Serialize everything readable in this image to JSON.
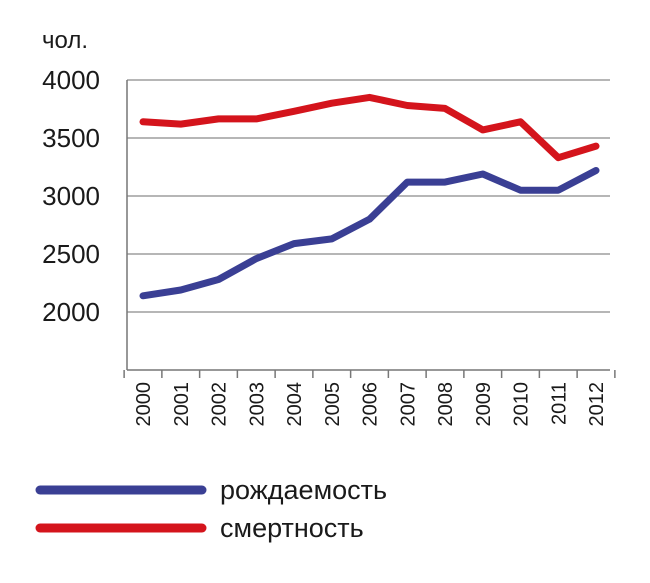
{
  "chart_data": {
    "type": "line",
    "title": "",
    "xlabel": "",
    "ylabel": "чол.",
    "x": [
      "2000",
      "2001",
      "2002",
      "2003",
      "2004",
      "2005",
      "2006",
      "2007",
      "2008",
      "2009",
      "2010",
      "2011",
      "2012"
    ],
    "yticks": [
      "2000",
      "2500",
      "3000",
      "3500",
      "4000"
    ],
    "ylim": [
      1500,
      4000
    ],
    "grid": true,
    "legend_placement": "bottom",
    "series": [
      {
        "name": "смертность",
        "color": "#d4141c",
        "values": [
          3640,
          3620,
          3665,
          3665,
          3730,
          3800,
          3850,
          3780,
          3755,
          3570,
          3640,
          3330,
          3430
        ]
      },
      {
        "name": "рождаемость",
        "color": "#3a3f94",
        "values": [
          2140,
          2190,
          2280,
          2460,
          2590,
          2630,
          2800,
          3120,
          3120,
          3190,
          3050,
          3050,
          3220
        ]
      }
    ],
    "legend_order": [
      "рождаемость",
      "смертность"
    ]
  }
}
